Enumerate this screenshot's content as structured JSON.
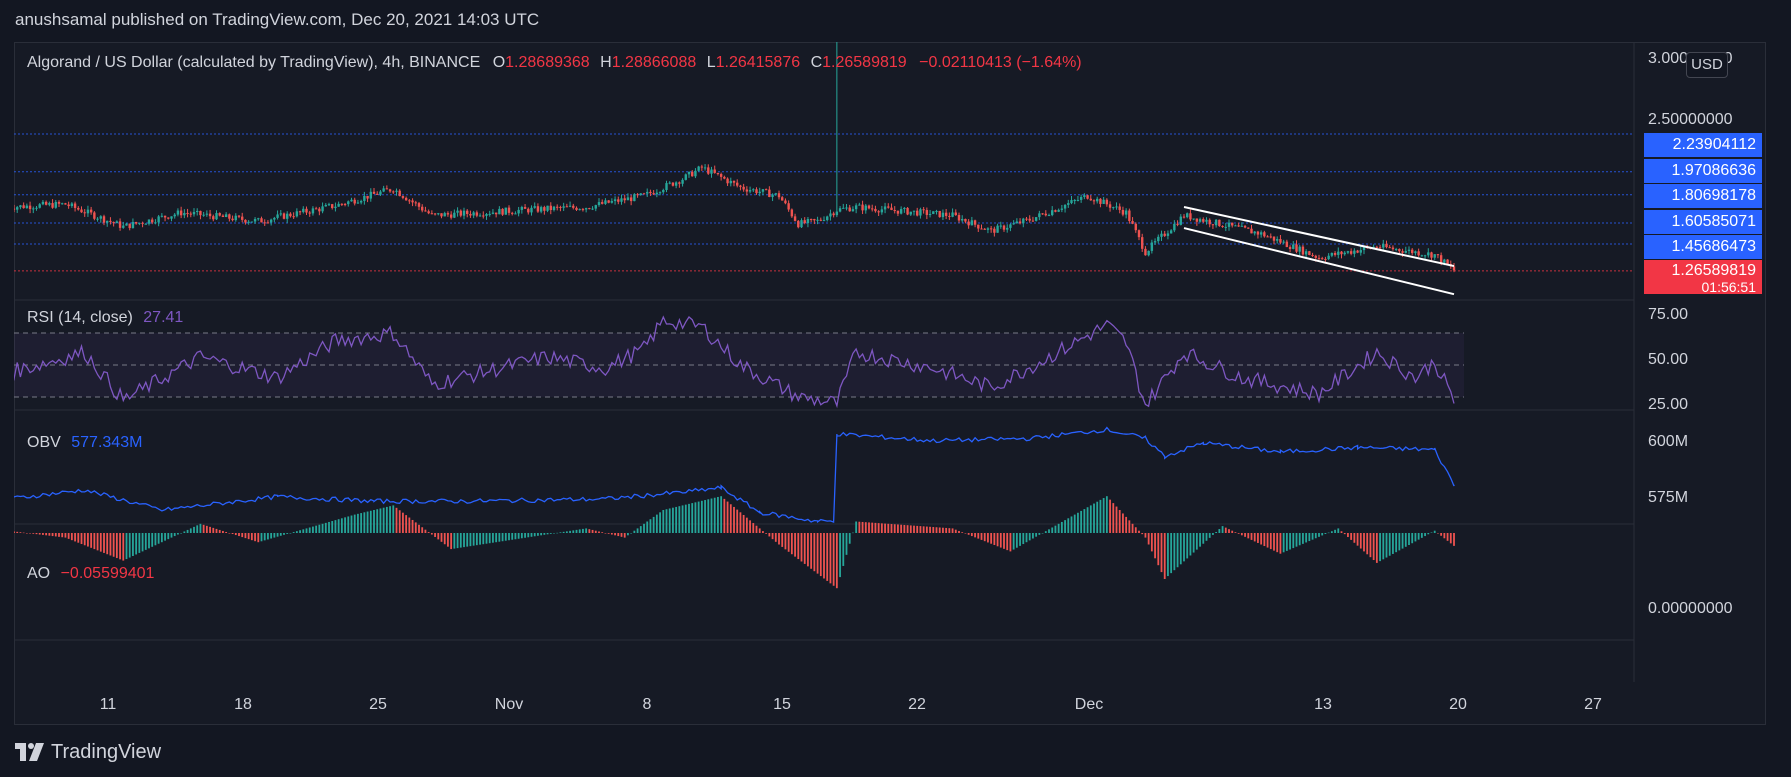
{
  "header": {
    "published": "anushsamal published on TradingView.com, Dec 20, 2021 14:03 UTC"
  },
  "legend": {
    "symbol": "Algorand / US Dollar (calculated by TradingView), 4h, BINANCE",
    "o_label": "O",
    "o": "1.28689368",
    "h_label": "H",
    "h": "1.28866088",
    "l_label": "L",
    "l": "1.26415876",
    "c_label": "C",
    "c": "1.26589819",
    "change": "−0.02110413 (−1.64%)",
    "rsi_label": "RSI (14, close)",
    "rsi_value": "27.41",
    "obv_label": "OBV",
    "obv_value": "577.343M",
    "ao_label": "AO",
    "ao_value": "−0.05599401"
  },
  "price_axis": {
    "currency_button": "USD",
    "top_label": "3.00000000",
    "label_250": "2.50000000",
    "levels": [
      {
        "value": "2.23904112",
        "color": "#2962ff"
      },
      {
        "value": "1.97086636",
        "color": "#2962ff"
      },
      {
        "value": "1.80698178",
        "color": "#2962ff"
      },
      {
        "value": "1.60585071",
        "color": "#2962ff"
      },
      {
        "value": "1.45686473",
        "color": "#2962ff"
      }
    ],
    "last_price": {
      "value": "1.26589819",
      "countdown": "01:56:51",
      "color": "#f23645"
    }
  },
  "rsi_axis": [
    "75.00",
    "50.00",
    "25.00"
  ],
  "obv_axis": [
    "600M",
    "575M"
  ],
  "ao_axis": [
    "0.00000000"
  ],
  "date_axis": [
    "11",
    "18",
    "25",
    "Nov",
    "8",
    "15",
    "22",
    "Dec",
    "13",
    "20",
    "27"
  ],
  "branding": {
    "logo_text": "TradingView"
  },
  "colors": {
    "up": "#26a69a",
    "down": "#ef5350",
    "rsi": "#7e57c2",
    "obv": "#2962ff",
    "trend": "#ffffff"
  },
  "chart_data": {
    "type": "candlestick",
    "title": "Algorand / US Dollar (calculated by TradingView), 4h, BINANCE",
    "x_ticks": [
      "11",
      "18",
      "25",
      "Nov",
      "8",
      "15",
      "22",
      "Dec",
      "13",
      "20",
      "27"
    ],
    "price_waypoints": [
      {
        "date": "2021-10-06",
        "price": 1.72
      },
      {
        "date": "2021-10-09",
        "price": 1.74
      },
      {
        "date": "2021-10-12",
        "price": 1.58
      },
      {
        "date": "2021-10-15",
        "price": 1.68
      },
      {
        "date": "2021-10-19",
        "price": 1.62
      },
      {
        "date": "2021-10-23",
        "price": 1.73
      },
      {
        "date": "2021-10-26",
        "price": 1.85
      },
      {
        "date": "2021-10-28",
        "price": 1.66
      },
      {
        "date": "2021-11-02",
        "price": 1.7
      },
      {
        "date": "2021-11-05",
        "price": 1.72
      },
      {
        "date": "2021-11-08",
        "price": 1.8
      },
      {
        "date": "2021-11-10",
        "price": 1.92
      },
      {
        "date": "2021-11-11",
        "price": 2.0
      },
      {
        "date": "2021-11-13",
        "price": 1.86
      },
      {
        "date": "2021-11-15",
        "price": 1.8
      },
      {
        "date": "2021-11-16",
        "price": 1.6
      },
      {
        "date": "2021-11-17",
        "price": 1.62
      },
      {
        "date": "2021-11-18",
        "price": 1.7
      },
      {
        "date": "2021-11-19",
        "price": 1.72
      },
      {
        "date": "2021-11-24",
        "price": 1.66
      },
      {
        "date": "2021-11-26",
        "price": 1.55
      },
      {
        "date": "2021-11-28",
        "price": 1.63
      },
      {
        "date": "2021-12-01",
        "price": 1.8
      },
      {
        "date": "2021-12-03",
        "price": 1.68
      },
      {
        "date": "2021-12-04",
        "price": 1.4
      },
      {
        "date": "2021-12-06",
        "price": 1.66
      },
      {
        "date": "2021-12-10",
        "price": 1.53
      },
      {
        "date": "2021-12-13",
        "price": 1.36
      },
      {
        "date": "2021-12-16",
        "price": 1.44
      },
      {
        "date": "2021-12-19",
        "price": 1.38
      },
      {
        "date": "2021-12-20",
        "price": 1.27
      }
    ],
    "spike": {
      "date": "2021-11-18",
      "high": 2.95
    },
    "channel_upper": [
      {
        "date": "2021-12-06",
        "price": 1.72
      },
      {
        "date": "2021-12-20",
        "price": 1.3
      }
    ],
    "channel_lower": [
      {
        "date": "2021-12-06",
        "price": 1.57
      },
      {
        "date": "2021-12-20",
        "price": 1.1
      }
    ],
    "rsi": [
      {
        "date": "2021-10-06",
        "value": 45
      },
      {
        "date": "2021-10-10",
        "value": 58
      },
      {
        "date": "2021-10-12",
        "value": 28
      },
      {
        "date": "2021-10-16",
        "value": 55
      },
      {
        "date": "2021-10-20",
        "value": 42
      },
      {
        "date": "2021-10-23",
        "value": 65
      },
      {
        "date": "2021-10-26",
        "value": 70
      },
      {
        "date": "2021-10-28",
        "value": 38
      },
      {
        "date": "2021-11-03",
        "value": 55
      },
      {
        "date": "2021-11-06",
        "value": 48
      },
      {
        "date": "2021-11-08",
        "value": 60
      },
      {
        "date": "2021-11-09",
        "value": 78
      },
      {
        "date": "2021-11-11",
        "value": 74
      },
      {
        "date": "2021-11-13",
        "value": 50
      },
      {
        "date": "2021-11-16",
        "value": 30
      },
      {
        "date": "2021-11-18",
        "value": 26
      },
      {
        "date": "2021-11-19",
        "value": 58
      },
      {
        "date": "2021-11-23",
        "value": 48
      },
      {
        "date": "2021-11-26",
        "value": 36
      },
      {
        "date": "2021-11-29",
        "value": 55
      },
      {
        "date": "2021-12-02",
        "value": 75
      },
      {
        "date": "2021-12-03",
        "value": 64
      },
      {
        "date": "2021-12-04",
        "value": 25
      },
      {
        "date": "2021-12-06",
        "value": 58
      },
      {
        "date": "2021-12-09",
        "value": 42
      },
      {
        "date": "2021-12-13",
        "value": 32
      },
      {
        "date": "2021-12-16",
        "value": 58
      },
      {
        "date": "2021-12-18",
        "value": 42
      },
      {
        "date": "2021-12-19",
        "value": 52
      },
      {
        "date": "2021-12-20",
        "value": 27.41
      }
    ],
    "obv": [
      {
        "date": "2021-10-06",
        "value": 571
      },
      {
        "date": "2021-10-10",
        "value": 575
      },
      {
        "date": "2021-10-14",
        "value": 566
      },
      {
        "date": "2021-10-20",
        "value": 572
      },
      {
        "date": "2021-10-25",
        "value": 570
      },
      {
        "date": "2021-10-30",
        "value": 570
      },
      {
        "date": "2021-11-06",
        "value": 571
      },
      {
        "date": "2021-11-10",
        "value": 574
      },
      {
        "date": "2021-11-12",
        "value": 576
      },
      {
        "date": "2021-11-14",
        "value": 565
      },
      {
        "date": "2021-11-17",
        "value": 561
      },
      {
        "date": "2021-11-18",
        "value": 561
      },
      {
        "date": "2021-11-18",
        "value": 600
      },
      {
        "date": "2021-11-23",
        "value": 597
      },
      {
        "date": "2021-11-28",
        "value": 598
      },
      {
        "date": "2021-12-02",
        "value": 602
      },
      {
        "date": "2021-12-04",
        "value": 598
      },
      {
        "date": "2021-12-05",
        "value": 590
      },
      {
        "date": "2021-12-07",
        "value": 596
      },
      {
        "date": "2021-12-11",
        "value": 592
      },
      {
        "date": "2021-12-15",
        "value": 594
      },
      {
        "date": "2021-12-19",
        "value": 593
      },
      {
        "date": "2021-12-20",
        "value": 577.343
      }
    ],
    "ao": [
      {
        "date": "2021-10-06",
        "value": 0.01
      },
      {
        "date": "2021-10-09",
        "value": -0.02
      },
      {
        "date": "2021-10-12",
        "value": -0.12
      },
      {
        "date": "2021-10-16",
        "value": 0.04
      },
      {
        "date": "2021-10-19",
        "value": -0.04
      },
      {
        "date": "2021-10-24",
        "value": 0.08
      },
      {
        "date": "2021-10-26",
        "value": 0.12
      },
      {
        "date": "2021-10-29",
        "value": -0.07
      },
      {
        "date": "2021-11-05",
        "value": 0.02
      },
      {
        "date": "2021-11-07",
        "value": -0.02
      },
      {
        "date": "2021-11-09",
        "value": 0.1
      },
      {
        "date": "2021-11-12",
        "value": 0.16
      },
      {
        "date": "2021-11-15",
        "value": -0.05
      },
      {
        "date": "2021-11-18",
        "value": -0.24
      },
      {
        "date": "2021-11-19",
        "value": 0.05
      },
      {
        "date": "2021-11-24",
        "value": 0.02
      },
      {
        "date": "2021-11-27",
        "value": -0.08
      },
      {
        "date": "2021-12-02",
        "value": 0.16
      },
      {
        "date": "2021-12-04",
        "value": -0.02
      },
      {
        "date": "2021-12-05",
        "value": -0.2
      },
      {
        "date": "2021-12-08",
        "value": 0.03
      },
      {
        "date": "2021-12-11",
        "value": -0.09
      },
      {
        "date": "2021-12-14",
        "value": 0.02
      },
      {
        "date": "2021-12-16",
        "value": -0.13
      },
      {
        "date": "2021-12-19",
        "value": 0.01
      },
      {
        "date": "2021-12-20",
        "value": -0.056
      }
    ]
  }
}
